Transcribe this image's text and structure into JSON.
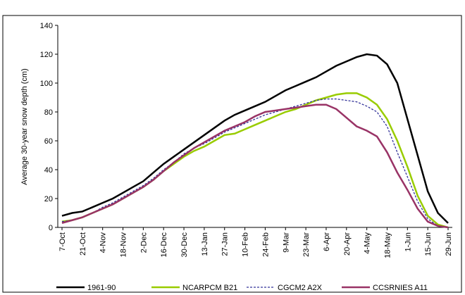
{
  "chart_data": {
    "type": "line",
    "y_label": "Average 30-year snow depth (cm)",
    "categories": [
      "7-Oct",
      null,
      "21-Oct",
      null,
      "4-Nov",
      null,
      "18-Nov",
      null,
      "2-Dec",
      null,
      "16-Dec",
      null,
      "30-Dec",
      null,
      "13-Jan",
      null,
      "27-Jan",
      null,
      "10-Feb",
      null,
      "24-Feb",
      null,
      "9-Mar",
      null,
      "23-Mar",
      null,
      "6-Apr",
      null,
      "20-Apr",
      null,
      "4-May",
      null,
      "18-May",
      null,
      "1-Jun",
      null,
      "15-Jun",
      null,
      "29-Jun"
    ],
    "series": [
      {
        "name": "1961-90",
        "color": "#000000",
        "dash": false,
        "values": [
          8,
          10,
          11,
          14,
          17,
          20,
          24,
          28,
          32,
          38,
          44,
          49,
          54,
          59,
          64,
          69,
          74,
          78,
          81,
          84,
          87,
          91,
          95,
          98,
          101,
          104,
          108,
          112,
          115,
          118,
          120,
          119,
          113,
          100,
          75,
          50,
          25,
          10,
          3
        ]
      },
      {
        "name": "NCARPCM B21",
        "color": "#99cc00",
        "dash": false,
        "values": [
          4,
          5,
          7,
          10,
          13,
          16,
          20,
          24,
          28,
          33,
          39,
          44,
          49,
          53,
          56,
          60,
          64,
          65,
          68,
          71,
          74,
          77,
          80,
          82,
          85,
          88,
          90,
          92,
          93,
          93,
          90,
          85,
          75,
          60,
          42,
          22,
          8,
          2,
          0
        ]
      },
      {
        "name": "CGCM2 A2X",
        "color": "#333399",
        "dash": true,
        "values": [
          4,
          5,
          7,
          10,
          14,
          17,
          21,
          25,
          29,
          34,
          40,
          45,
          51,
          55,
          58,
          62,
          66,
          69,
          72,
          75,
          78,
          80,
          82,
          84,
          86,
          88,
          89,
          89,
          88,
          87,
          84,
          80,
          70,
          52,
          35,
          18,
          6,
          1,
          0
        ]
      },
      {
        "name": "CCSRNIES A11",
        "color": "#993366",
        "dash": false,
        "values": [
          3,
          5,
          7,
          10,
          13,
          16,
          20,
          24,
          28,
          33,
          39,
          45,
          50,
          55,
          59,
          63,
          67,
          70,
          73,
          77,
          80,
          81,
          82,
          83,
          84,
          85,
          85,
          82,
          76,
          70,
          67,
          63,
          52,
          38,
          26,
          13,
          4,
          1,
          0
        ]
      }
    ],
    "ylim": [
      0,
      140
    ],
    "yticks": [
      0,
      20,
      40,
      60,
      80,
      100,
      120,
      140
    ]
  }
}
